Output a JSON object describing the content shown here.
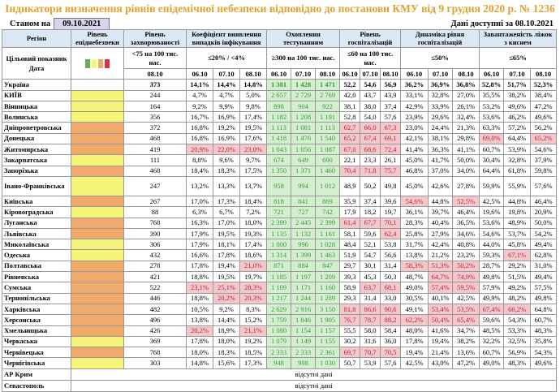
{
  "title": "Індикатори визначення рівнів епідемічної небезпеки відповідно до постанови КМУ від 9 грудня 2020 р. № 1236",
  "as_of_label": "Станом на",
  "as_of_date": "09.10.2021",
  "available_label": "Дані доступні за 08.10.2021",
  "headers": {
    "region": "Регіон",
    "level": "Рівень епіднебезпеки",
    "incidence": "Рівень захворюваності",
    "coef": "Коефіцієнт виявлення випадків інфікування",
    "testing": "Охоплення тестуванням",
    "hosp": "Рівень госпіталізацій",
    "dyn": "Динаміка рівня госпіталізацій",
    "beds": "Завантаженість ліжок з киснем"
  },
  "target": {
    "label": "Цільовий показник",
    "incidence": "<75 на 100 тис. нас.",
    "coef": "≤20% / <4%",
    "testing": "≥300 на 100 тис. нас.",
    "hosp": "≤60 на 100 тис. нас.",
    "dyn": "≤50%",
    "beds": "≤65%",
    "legend_colors": [
      "#6ab04c",
      "#f5f57a",
      "#f0ab6c",
      "#d9343f"
    ]
  },
  "dates": {
    "label": "Дата",
    "incidence": "08.10",
    "days": [
      "06.10",
      "07.10",
      "08.10"
    ]
  },
  "colors": {
    "yellow": "#f5f57a",
    "orange": "#f0ab6c",
    "green": "#d4efcf",
    "pink": "#f4c7cd"
  },
  "rows": [
    {
      "name": "Україна",
      "level": "",
      "inc": "373",
      "coef": [
        "14,1%",
        "14,4%",
        "14,8%"
      ],
      "test": [
        "1 381",
        "1 428",
        "1 471"
      ],
      "hosp": [
        "52,2",
        "54,6",
        "56,9"
      ],
      "dyn": [
        "36,2%",
        "36,9%",
        "36,8%"
      ],
      "beds": [
        "52,8%",
        "51,7%",
        "52,3%"
      ]
    },
    {
      "name": "КИЇВ",
      "level": "yellow",
      "inc": "244",
      "coef": [
        "4,7%",
        "4,7%",
        "5,0%"
      ],
      "test": [
        "2 657",
        "2 729",
        "2 769"
      ],
      "hosp": [
        "42,0",
        "43,7",
        "43,9"
      ],
      "dyn": [
        "33,1%",
        "32,8%",
        "27,0%"
      ],
      "beds": [
        "35,5%",
        "38,2%",
        "38,4%"
      ]
    },
    {
      "name": "Вінницька",
      "level": "yellow",
      "inc": "164",
      "coef": [
        "9,2%",
        "9,9%",
        "9,8%"
      ],
      "test": [
        "898",
        "904",
        "922"
      ],
      "hosp": [
        "38,1",
        "38,0",
        "37,4"
      ],
      "dyn": [
        "42,9%",
        "33,9%",
        "26,1%"
      ],
      "beds": [
        "53,2%",
        "49,6%",
        "47,2%"
      ]
    },
    {
      "name": "Волинська",
      "level": "yellow",
      "inc": "356",
      "coef": [
        "16,7%",
        "16,9%",
        "17,4%"
      ],
      "test": [
        "1 182",
        "1 208",
        "1 191"
      ],
      "hosp": [
        "52,8",
        "54,0",
        "57,6"
      ],
      "dyn": [
        "23,9%",
        "29,6%",
        "32,4%"
      ],
      "beds": [
        "53,6%",
        "46,2%",
        "49,6%"
      ]
    },
    {
      "name": "Дніпропетровська",
      "level": "orange",
      "inc": "372",
      "coef": [
        "16,8%",
        "19,2%",
        "19,5%"
      ],
      "test": [
        "1 113",
        "1 081",
        "1 113"
      ],
      "hosp": [
        "62,7",
        "66,0",
        "67,3"
      ],
      "dyn": [
        "23,0%",
        "24,4%",
        "21,3%"
      ],
      "beds": [
        "63,3%",
        "57,2%",
        "56,2%"
      ]
    },
    {
      "name": "Донецька",
      "level": "orange",
      "inc": "468",
      "coef": [
        "16,8%",
        "16,9%",
        "17,6%"
      ],
      "test": [
        "1 418",
        "1 476",
        "1 540"
      ],
      "hosp": [
        "65,2",
        "67,4",
        "69,1"
      ],
      "dyn": [
        "42,1%",
        "38,1%",
        "29,8%"
      ],
      "beds": [
        "69,0%",
        "64,4%",
        "65,2%"
      ]
    },
    {
      "name": "Житомирська",
      "level": "orange",
      "inc": "419",
      "coef": [
        "20,9%",
        "22,0%",
        "23,0%"
      ],
      "test": [
        "1 043",
        "1 056",
        "1 087"
      ],
      "hosp": [
        "67,0",
        "68,6",
        "72,4"
      ],
      "dyn": [
        "41,4%",
        "36,3%",
        "41,1%"
      ],
      "beds": [
        "60,7%",
        "53,9%",
        "54,6%"
      ]
    },
    {
      "name": "Закарпатська",
      "level": "yellow",
      "inc": "111",
      "coef": [
        "8,8%",
        "9,6%",
        "9,7%"
      ],
      "test": [
        "674",
        "649",
        "690"
      ],
      "hosp": [
        "22,1",
        "23,3",
        "26,1"
      ],
      "dyn": [
        "45,0%",
        "41,7%",
        "50,0%"
      ],
      "beds": [
        "30,4%",
        "32,8%",
        "37,9%"
      ]
    },
    {
      "name": "Запорізька",
      "level": "orange",
      "inc": "468",
      "coef": [
        "18,4%",
        "18,3%",
        "17,5%"
      ],
      "test": [
        "1 350",
        "1 371",
        "1 460"
      ],
      "hosp": [
        "70,4",
        "71,8",
        "75,7"
      ],
      "dyn": [
        "46,8%",
        "37,0%",
        "34,0%"
      ],
      "beds": [
        "64,4%",
        "61,8%",
        "59,8%"
      ]
    },
    {
      "name": "Івано-Франківська",
      "level": "yellow",
      "inc": "247",
      "coef": [
        "13,2%",
        "13,3%",
        "13,7%"
      ],
      "test": [
        "958",
        "994",
        "1 012"
      ],
      "hosp": [
        "48,9",
        "50,2",
        "49,8"
      ],
      "dyn": [
        "45,0%",
        "42,6%",
        "27,8%"
      ],
      "beds": [
        "59,9%",
        "55,9%",
        "57,6%"
      ]
    },
    {
      "name": "Київська",
      "level": "orange",
      "inc": "267",
      "coef": [
        "17,0%",
        "17,3%",
        "18,4%"
      ],
      "test": [
        "818",
        "841",
        "869"
      ],
      "hosp": [
        "35,9",
        "37,4",
        "39,6"
      ],
      "dyn": [
        "54,6%",
        "44,8%",
        "52,5%"
      ],
      "beds": [
        "42,5%",
        "44,8%",
        "46,4%"
      ]
    },
    {
      "name": "Кіровоградська",
      "level": "yellow",
      "inc": "88",
      "coef": [
        "6,3%",
        "6,7%",
        "7,2%"
      ],
      "test": [
        "721",
        "727",
        "742"
      ],
      "hosp": [
        "17,9",
        "18,2",
        "19,7"
      ],
      "dyn": [
        "36,1%",
        "39,7%",
        "46,4%"
      ],
      "beds": [
        "19,6%",
        "19,8%",
        "20,9%"
      ]
    },
    {
      "name": "Луганська",
      "level": "orange",
      "inc": "768",
      "coef": [
        "16,3%",
        "17,0%",
        "18,0%"
      ],
      "test": [
        "2 399",
        "2 445",
        "2 399"
      ],
      "hosp": [
        "61,4",
        "67,7",
        "70,1"
      ],
      "dyn": [
        "28,3%",
        "40,4%",
        "36,5%"
      ],
      "beds": [
        "53,6%",
        "48,9%",
        "50,0%"
      ]
    },
    {
      "name": "Львівська",
      "level": "orange",
      "inc": "390",
      "coef": [
        "17,9%",
        "19,5%",
        "19,3%"
      ],
      "test": [
        "1 135",
        "1 132",
        "1 161"
      ],
      "hosp": [
        "58,1",
        "59,6",
        "62,4"
      ],
      "dyn": [
        "25,8%",
        "27,9%",
        "34,6%"
      ],
      "beds": [
        "54,6%",
        "53,7%",
        "54,2%"
      ]
    },
    {
      "name": "Миколаївська",
      "level": "yellow",
      "inc": "306",
      "coef": [
        "17,9%",
        "18,1%",
        "17,4%"
      ],
      "test": [
        "1 000",
        "996",
        "1 028"
      ],
      "hosp": [
        "48,4",
        "52,1",
        "53,8"
      ],
      "dyn": [
        "31,7%",
        "42,4%",
        "40,8%"
      ],
      "beds": [
        "44,0%",
        "45,8%",
        "49,4%"
      ]
    },
    {
      "name": "Одеська",
      "level": "yellow",
      "inc": "432",
      "coef": [
        "16,6%",
        "17,8%",
        "18,6%"
      ],
      "test": [
        "1 314",
        "1 399",
        "1 463"
      ],
      "hosp": [
        "51,9",
        "54,7",
        "56,6"
      ],
      "dyn": [
        "13,8%",
        "21,2%",
        "23,2%"
      ],
      "beds": [
        "59,3%",
        "67,1%",
        "62,8%"
      ]
    },
    {
      "name": "Полтавська",
      "level": "orange",
      "inc": "278",
      "coef": [
        "17,8%",
        "19,4%",
        "21,0%"
      ],
      "test": [
        "871",
        "884",
        "847"
      ],
      "hosp": [
        "29,7",
        "30,1",
        "31,4"
      ],
      "dyn": [
        "58,3%",
        "51,3%",
        "50,2%"
      ],
      "beds": [
        "28,7%",
        "29,2%",
        "31,0%"
      ]
    },
    {
      "name": "Рівненська",
      "level": "orange",
      "inc": "421",
      "coef": [
        "18,8%",
        "19,5%",
        "19,7%"
      ],
      "test": [
        "1 185",
        "1 197",
        "1 209"
      ],
      "hosp": [
        "39,3",
        "45,3",
        "50,3"
      ],
      "dyn": [
        "48,7%",
        "64,7%",
        "74,9%"
      ],
      "beds": [
        "49,8%",
        "51,5%",
        "49,4%"
      ]
    },
    {
      "name": "Сумська",
      "level": "orange",
      "inc": "522",
      "coef": [
        "23,1%",
        "25,1%",
        "28,3%"
      ],
      "test": [
        "1 109",
        "1 171",
        "1 160"
      ],
      "hosp": [
        "58,9",
        "63,7",
        "68,1"
      ],
      "dyn": [
        "49,0%",
        "57,4%",
        "59,5%"
      ],
      "beds": [
        "57,9%",
        "49,2%",
        "57,5%"
      ]
    },
    {
      "name": "Тернопільська",
      "level": "orange",
      "inc": "446",
      "coef": [
        "18,8%",
        "20,2%",
        "20,3%"
      ],
      "test": [
        "1 217",
        "1 244",
        "1 289"
      ],
      "hosp": [
        "29,3",
        "31,4",
        "33,0"
      ],
      "dyn": [
        "30,5%",
        "40,1%",
        "42,5%"
      ],
      "beds": [
        "49,9%",
        "48,2%",
        "49,8%"
      ]
    },
    {
      "name": "Харківська",
      "level": "orange",
      "inc": "482",
      "coef": [
        "10,5%",
        "9,2%",
        "8,3%"
      ],
      "test": [
        "2 629",
        "2 916",
        "3 150"
      ],
      "hosp": [
        "81,8",
        "86,6",
        "90,6"
      ],
      "dyn": [
        "49,1%",
        "53,4%",
        "53,5%"
      ],
      "beds": [
        "67,4%",
        "66,2%",
        "64,8%"
      ]
    },
    {
      "name": "Херсонська",
      "level": "orange",
      "inc": "496",
      "coef": [
        "13,8%",
        "14,4%",
        "15,2%"
      ],
      "test": [
        "1 759",
        "1 846",
        "1 905"
      ],
      "hosp": [
        "76,7",
        "78,7",
        "88,2"
      ],
      "dyn": [
        "62,2%",
        "50,4%",
        "65,4%"
      ],
      "beds": [
        "59,6%",
        "54,3%",
        "60,7%"
      ]
    },
    {
      "name": "Хмельницька",
      "level": "orange",
      "inc": "426",
      "coef": [
        "20,2%",
        "18,9%",
        "21,1%"
      ],
      "test": [
        "1 080",
        "1 154",
        "1 157"
      ],
      "hosp": [
        "55,5",
        "58,0",
        "58,4"
      ],
      "dyn": [
        "48,0%",
        "41,6%",
        "34,7%"
      ],
      "beds": [
        "48,5%",
        "53,3%",
        "48,3%"
      ]
    },
    {
      "name": "Черкаська",
      "level": "yellow",
      "inc": "369",
      "coef": [
        "17,8%",
        "18,0%",
        "19,2%"
      ],
      "test": [
        "1 079",
        "1 149",
        "1 155"
      ],
      "hosp": [
        "30,2",
        "31,6",
        "36,0"
      ],
      "dyn": [
        "17,8%",
        "19,4%",
        "38,2%"
      ],
      "beds": [
        "32,2%",
        "32,5%",
        "35,8%"
      ]
    },
    {
      "name": "Чернівецька",
      "level": "orange",
      "inc": "768",
      "coef": [
        "18,0%",
        "18,3%",
        "18,5%"
      ],
      "test": [
        "2 333",
        "2 333",
        "2 361"
      ],
      "hosp": [
        "69,7",
        "70,7",
        "70,5"
      ],
      "dyn": [
        "19,4%",
        "21,4%",
        "13,6%"
      ],
      "beds": [
        "60,7%",
        "56,9%",
        "54,3%"
      ]
    },
    {
      "name": "Чернігівська",
      "level": "yellow",
      "inc": "303",
      "coef": [
        "14,8%",
        "15,6%",
        "17,3%"
      ],
      "test": [
        "948",
        "998",
        "1 030"
      ],
      "hosp": [
        "50,7",
        "53,9",
        "57,6"
      ],
      "dyn": [
        "42,5%",
        "43,0%",
        "47,2%"
      ],
      "beds": [
        "49,0%",
        "48,3%",
        "49,6%"
      ]
    }
  ],
  "no_data_rows": [
    {
      "name": "АР Крим",
      "text": "відсутні дані"
    },
    {
      "name": "Севастополь",
      "text": "відсутні дані"
    }
  ]
}
